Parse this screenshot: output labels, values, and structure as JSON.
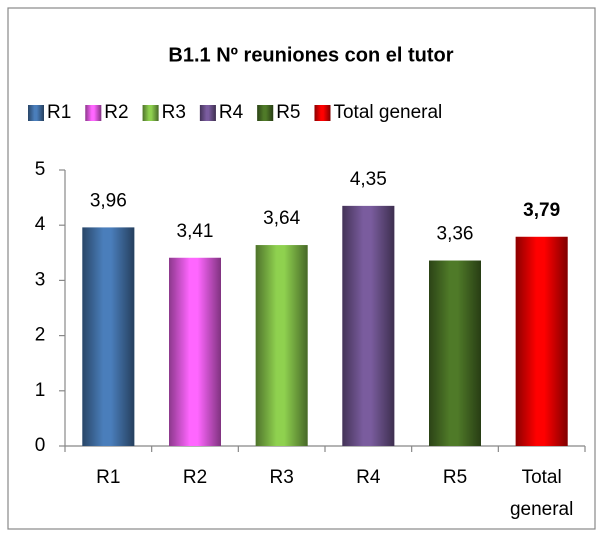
{
  "chart_data": {
    "type": "bar",
    "title": "B1.1 Nº reuniones con el tutor",
    "categories": [
      "R1",
      "R2",
      "R3",
      "R4",
      "R5",
      "Total general"
    ],
    "values": [
      3.96,
      3.41,
      3.64,
      4.35,
      3.36,
      3.79
    ],
    "value_labels": [
      "3,96",
      "3,41",
      "3,64",
      "4,35",
      "3,36",
      "3,79"
    ],
    "colors": [
      "#4a7ebb",
      "#ff66ff",
      "#8fd14f",
      "#7a5c9e",
      "#4f7a28",
      "#ff0000"
    ],
    "ylim": [
      0,
      5
    ],
    "yticks": [
      0,
      1,
      2,
      3,
      4,
      5
    ],
    "grid": false,
    "legend": "top"
  }
}
